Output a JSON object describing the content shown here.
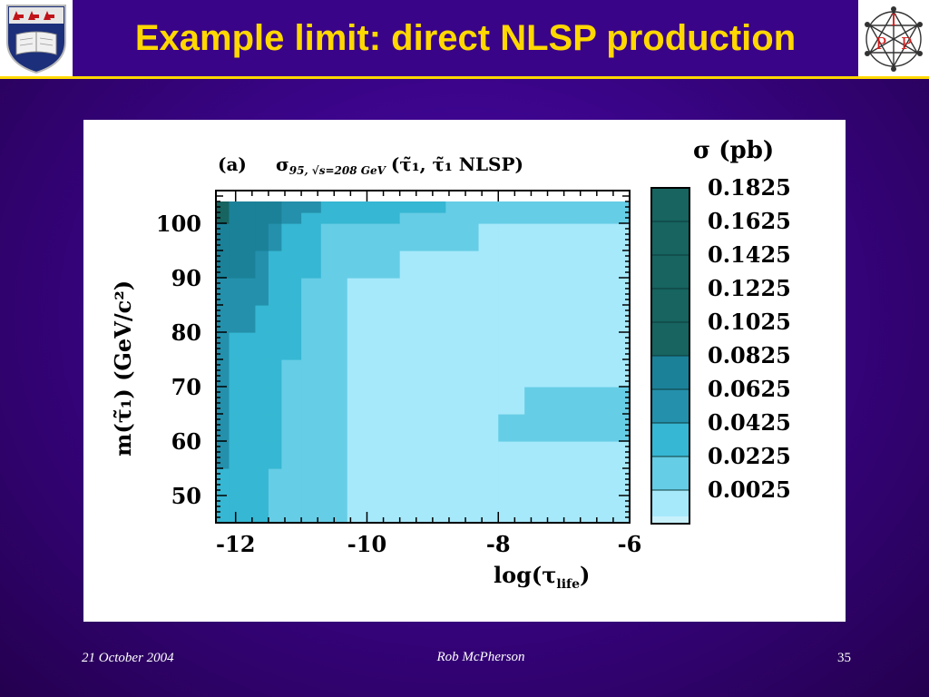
{
  "slide": {
    "title": "Example limit: direct NLSP production",
    "footer_date": "21 October 2004",
    "footer_author": "Rob McPherson",
    "page_number": "35"
  },
  "logos": {
    "left": "university-crest-icon",
    "right_letters": [
      "I",
      "P",
      "P"
    ]
  },
  "colors": {
    "background": "#3a0488",
    "title": "#ffd800",
    "levels": [
      "#a6e9fb",
      "#66cde6",
      "#36b7d3",
      "#2490ac",
      "#1b8199",
      "#176460",
      "#176460",
      "#176460",
      "#176460",
      "#176460"
    ]
  },
  "chart_data": {
    "type": "heatmap",
    "panel_label": "(a)",
    "title_main": "σ",
    "title_sub": "95, √s=208 GeV",
    "title_tail": "(τ̃₁, τ̃₁ NLSP)",
    "xlabel": "log(τ",
    "xlabel_sub": "life",
    "xlabel_tail": ")",
    "ylabel": "m(τ̃₁) (GeV/c²)",
    "xlim": [
      -12.3,
      -6
    ],
    "ylim": [
      45,
      106
    ],
    "x_ticks": [
      -12,
      -10,
      -8,
      -6
    ],
    "y_ticks": [
      50,
      60,
      70,
      80,
      90,
      100
    ],
    "x_tick_labels": [
      "-12",
      "-10",
      "-8",
      "-6"
    ],
    "y_tick_labels": [
      "50",
      "60",
      "70",
      "80",
      "90",
      "100"
    ],
    "colorbar_title": "σ (pb)",
    "colorbar_labels": [
      "0.1825",
      "0.1625",
      "0.1425",
      "0.1225",
      "0.1025",
      "0.0825",
      "0.0625",
      "0.0425",
      "0.0225",
      "0.0025"
    ],
    "x_bins": [
      -12.3,
      -12.1,
      -11.7,
      -11.5,
      -11.3,
      -11.0,
      -10.7,
      -10.3,
      -9.5,
      -8.8,
      -8.3,
      -8.0,
      -7.6,
      -7.2,
      -6.9,
      -6.5,
      -6.2,
      -6.0
    ],
    "y_bins": [
      45,
      50,
      55,
      60,
      65,
      70,
      75,
      80,
      85,
      90,
      95,
      100,
      102,
      104
    ],
    "values": [
      [
        0.058,
        0.058,
        0.045,
        0.035,
        0.032,
        0.03,
        0.025,
        0.022,
        0.018,
        0.015,
        0.012,
        0.01,
        0.005,
        0.004,
        0.003,
        0.003,
        0.003
      ],
      [
        0.062,
        0.06,
        0.055,
        0.04,
        0.035,
        0.032,
        0.025,
        0.018,
        0.016,
        0.014,
        0.012,
        0.011,
        0.01,
        0.012,
        0.01,
        0.012,
        0.012
      ],
      [
        0.065,
        0.062,
        0.058,
        0.045,
        0.04,
        0.032,
        0.026,
        0.018,
        0.016,
        0.015,
        0.014,
        0.013,
        0.012,
        0.012,
        0.012,
        0.012,
        0.012
      ],
      [
        0.065,
        0.062,
        0.058,
        0.048,
        0.042,
        0.035,
        0.027,
        0.018,
        0.016,
        0.015,
        0.014,
        0.025,
        0.028,
        0.03,
        0.03,
        0.03,
        0.032
      ],
      [
        0.065,
        0.062,
        0.058,
        0.05,
        0.042,
        0.035,
        0.026,
        0.018,
        0.016,
        0.015,
        0.014,
        0.022,
        0.03,
        0.03,
        0.032,
        0.032,
        0.034
      ],
      [
        0.065,
        0.062,
        0.058,
        0.05,
        0.042,
        0.033,
        0.025,
        0.018,
        0.016,
        0.015,
        0.014,
        0.012,
        0.006,
        0.005,
        0.004,
        0.004,
        0.004
      ],
      [
        0.065,
        0.062,
        0.06,
        0.052,
        0.045,
        0.036,
        0.026,
        0.018,
        0.016,
        0.015,
        0.014,
        0.012,
        0.005,
        0.004,
        0.003,
        0.003,
        0.003
      ],
      [
        0.068,
        0.065,
        0.062,
        0.055,
        0.048,
        0.038,
        0.028,
        0.02,
        0.017,
        0.015,
        0.014,
        0.012,
        0.008,
        0.004,
        0.003,
        0.003,
        0.003
      ],
      [
        0.075,
        0.07,
        0.065,
        0.058,
        0.05,
        0.042,
        0.028,
        0.022,
        0.018,
        0.016,
        0.015,
        0.014,
        0.013,
        0.012,
        0.012,
        0.012,
        0.012
      ],
      [
        0.09,
        0.085,
        0.08,
        0.062,
        0.055,
        0.045,
        0.034,
        0.025,
        0.02,
        0.018,
        0.017,
        0.016,
        0.015,
        0.014,
        0.013,
        0.012,
        0.012
      ],
      [
        0.095,
        0.09,
        0.085,
        0.07,
        0.06,
        0.05,
        0.04,
        0.03,
        0.025,
        0.023,
        0.022,
        0.022,
        0.02,
        0.018,
        0.017,
        0.016,
        0.016
      ],
      [
        0.105,
        0.1,
        0.095,
        0.09,
        0.075,
        0.06,
        0.05,
        0.045,
        0.035,
        0.032,
        0.03,
        0.03,
        0.028,
        0.025,
        0.025,
        0.024,
        0.024
      ],
      [
        0.105,
        0.1,
        0.095,
        0.09,
        0.08,
        0.065,
        0.06,
        0.055,
        0.045,
        0.04,
        0.035,
        0.03,
        0.028,
        0.025,
        0.025,
        0.024,
        0.024
      ]
    ]
  }
}
